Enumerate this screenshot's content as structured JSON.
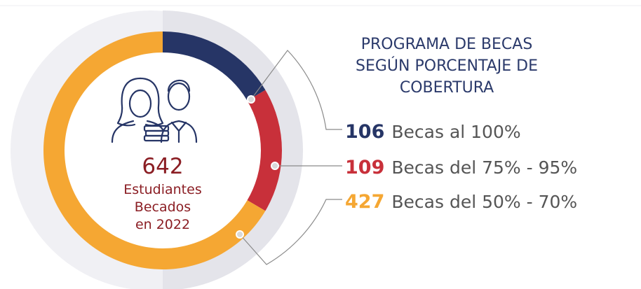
{
  "chart_data": {
    "type": "pie",
    "title": [
      "PROGRAMA DE BECAS",
      "SEGÚN PORCENTAJE DE",
      "COBERTURA"
    ],
    "total": 642,
    "center_label": [
      "Estudiantes",
      "Becados",
      "en 2022"
    ],
    "categories": [
      "Becas al 100%",
      "Becas del 75% - 95%",
      "Becas del 50% - 70%"
    ],
    "values": [
      106,
      109,
      427
    ],
    "colors": [
      "#263566",
      "#c8303a",
      "#f5a733"
    ]
  }
}
